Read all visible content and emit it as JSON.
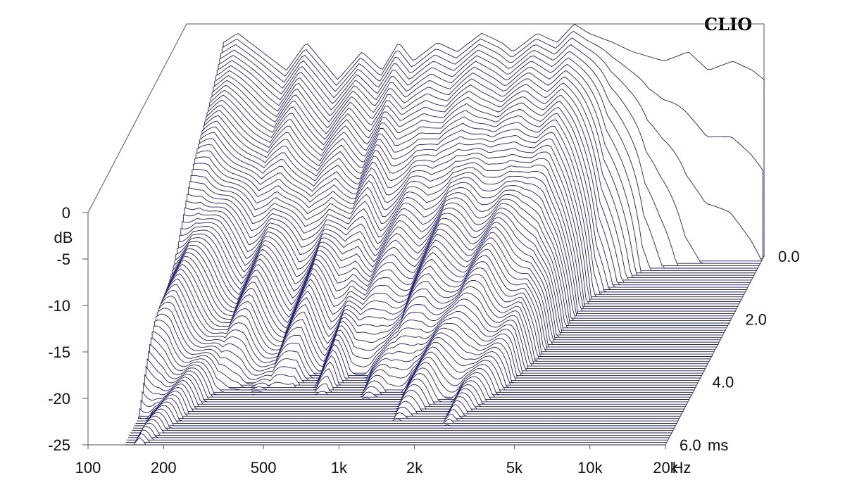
{
  "brand": "CLIO",
  "chart_data": {
    "type": "waterfall",
    "xlabel": "Hz",
    "ylabel": "dB",
    "zlabel": "ms",
    "x_scale": "log",
    "x_ticks": [
      100,
      200,
      500,
      1000,
      2000,
      5000,
      10000,
      20000
    ],
    "x_tick_labels": [
      "100",
      "200",
      "500",
      "1k",
      "2k",
      "5k",
      "10k",
      "20k"
    ],
    "y_ticks": [
      0,
      -5,
      -10,
      -15,
      -20,
      -25
    ],
    "y_tick_labels": [
      "0",
      "-5",
      "-10",
      "-15",
      "-20",
      "-25"
    ],
    "z_ticks": [
      0.0,
      2.0,
      4.0,
      6.0
    ],
    "z_tick_labels": [
      "0.0",
      "2.0",
      "4.0",
      "6.0"
    ],
    "xlim": [
      100,
      20000
    ],
    "ylim": [
      -25,
      0
    ],
    "zlim": [
      0,
      6
    ],
    "grid": false,
    "slices": 80,
    "front_slice_db": {
      "freq": [
        140,
        160,
        200,
        250,
        300,
        400,
        500,
        600,
        700,
        800,
        1000,
        1200,
        1500,
        1800,
        2000,
        2500,
        3000,
        3500,
        4000,
        5000,
        6000,
        8000,
        10000,
        12000,
        15000,
        18000,
        20000
      ],
      "db": [
        -2,
        -1,
        -3,
        -5,
        -2,
        -6,
        -3,
        -5,
        -2,
        -4,
        -2,
        -3,
        -1,
        -2,
        -3,
        -1,
        -2,
        0,
        -1,
        -2,
        -3,
        -4,
        -3,
        -5,
        -4,
        -5,
        -6
      ]
    },
    "decay_profile": {
      "freq": [
        140,
        200,
        300,
        500,
        800,
        1200,
        2000,
        3000,
        4000,
        5000,
        7000,
        10000,
        20000
      ],
      "ms_to_floor": [
        6.0,
        5.8,
        5.0,
        5.2,
        4.5,
        4.8,
        5.5,
        5.0,
        3.5,
        1.5,
        0.6,
        0.3,
        0.2
      ]
    }
  }
}
